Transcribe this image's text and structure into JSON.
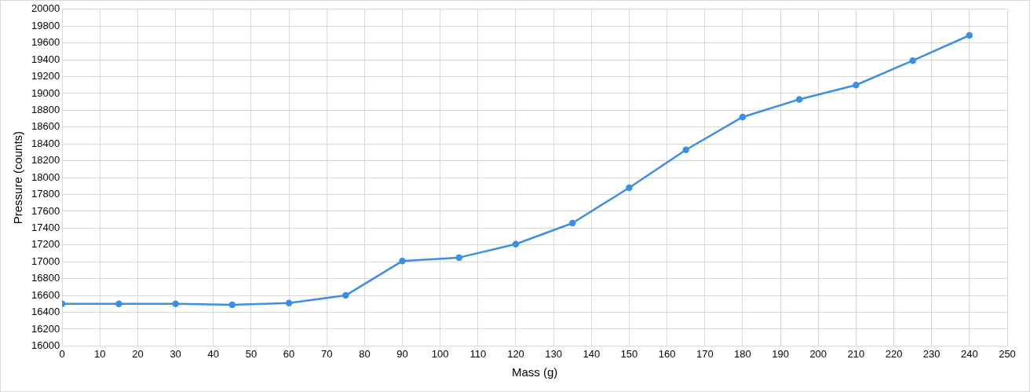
{
  "chart_data": {
    "type": "line",
    "xlabel": "Mass (g)",
    "ylabel": "Pressure (counts)",
    "x": [
      0,
      15,
      30,
      45,
      60,
      75,
      90,
      105,
      120,
      135,
      150,
      165,
      180,
      195,
      210,
      225,
      240
    ],
    "series": [
      {
        "color": "#3d8fe0",
        "values": [
          16500,
          16500,
          16500,
          16490,
          16510,
          16600,
          17010,
          17050,
          17210,
          17460,
          17880,
          18330,
          18720,
          18930,
          19100,
          19390,
          19690
        ]
      }
    ],
    "xlim": [
      0,
      250
    ],
    "xticks": [
      0,
      10,
      20,
      30,
      40,
      50,
      60,
      70,
      80,
      90,
      100,
      110,
      120,
      130,
      140,
      150,
      160,
      170,
      180,
      190,
      200,
      210,
      220,
      230,
      240,
      250
    ],
    "ylim": [
      16000,
      20000
    ],
    "yticks": [
      16000,
      16200,
      16400,
      16600,
      16800,
      17000,
      17200,
      17400,
      17600,
      17800,
      18000,
      18200,
      18400,
      18600,
      18800,
      19000,
      19200,
      19400,
      19600,
      19800,
      20000
    ],
    "grid": true,
    "marker": "circle",
    "line_style": "solid"
  }
}
